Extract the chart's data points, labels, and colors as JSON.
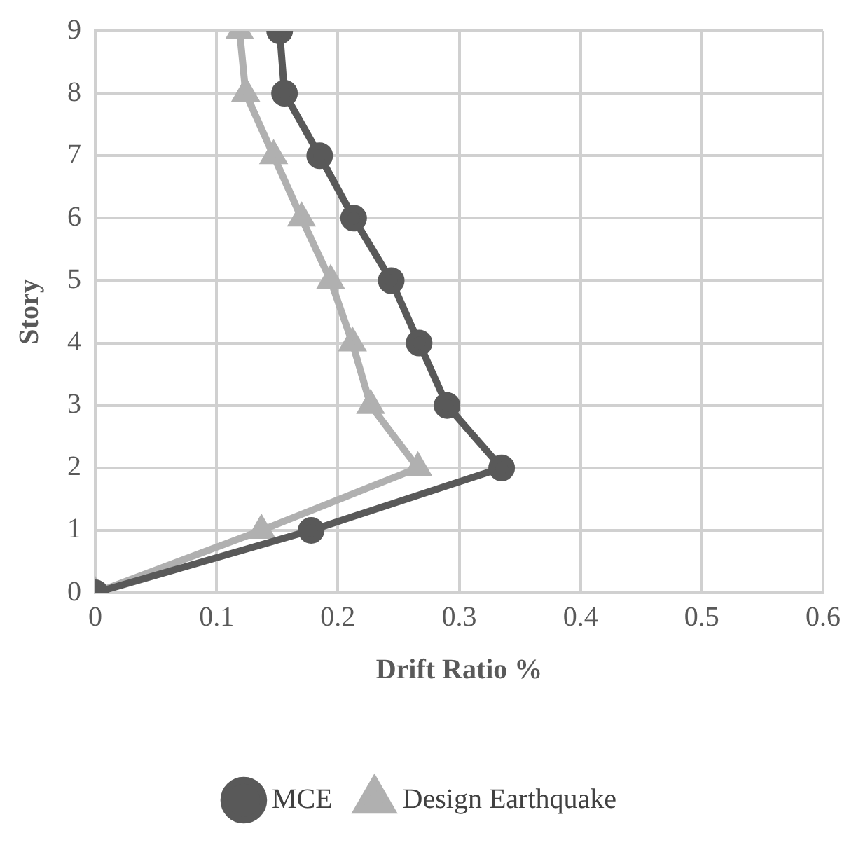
{
  "chart_data": {
    "type": "line",
    "xlabel": "Drift Ratio %",
    "ylabel": "Story",
    "xlim": [
      0,
      0.6
    ],
    "xticks": [
      0,
      0.1,
      0.2,
      0.3,
      0.4,
      0.5,
      0.6
    ],
    "ylim": [
      0,
      9
    ],
    "yticks": [
      0,
      1,
      2,
      3,
      4,
      5,
      6,
      7,
      8,
      9
    ],
    "grid": true,
    "legend": "bottom",
    "line_style": "solid",
    "series": [
      {
        "name": "MCE",
        "color": "#595959",
        "marker": "circle",
        "x": [
          0,
          0.178,
          0.335,
          0.29,
          0.267,
          0.244,
          0.213,
          0.185,
          0.156,
          0.152
        ],
        "values": [
          0,
          1,
          2,
          3,
          4,
          5,
          6,
          7,
          8,
          9
        ]
      },
      {
        "name": "Design Earthquake",
        "color": "#b0b0b0",
        "marker": "triangle",
        "x": [
          0,
          0.137,
          0.266,
          0.227,
          0.212,
          0.194,
          0.17,
          0.147,
          0.124,
          0.119
        ],
        "values": [
          0,
          1,
          2,
          3,
          4,
          5,
          6,
          7,
          8,
          9
        ]
      }
    ]
  }
}
